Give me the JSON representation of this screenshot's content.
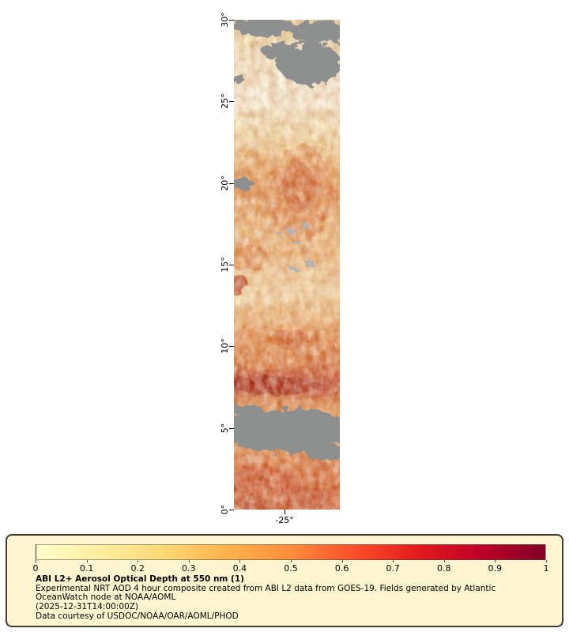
{
  "legend": {
    "lines": [
      "Experimental NRT AOD 4 hour composite created from ABI L2 data from GOES-19. Fields generated by Atlantic",
      "OceanWatch node at NOAA/AOML"
    ],
    "timestamp": "(2025-12-31T14:00:00Z)",
    "courtesy": "Data courtesy of USDOC/NOAA/OAR/AOML/PHOD"
  },
  "chart_data": {
    "type": "heatmap",
    "title": "ABI L2+ Aerosol Optical Depth at 550 nm (1)",
    "colorbar": {
      "range": [
        0,
        1
      ],
      "ticks": [
        "0",
        "0.1",
        "0.2",
        "0.3",
        "0.4",
        "0.5",
        "0.6",
        "0.7",
        "0.8",
        "0.9",
        "1"
      ],
      "tick_positions_pct": [
        0,
        10,
        20,
        30,
        40,
        50,
        60,
        70,
        80,
        90,
        100
      ],
      "colormap": "YlOrRd",
      "stops": [
        "#ffffcc",
        "#ffeda0",
        "#fed976",
        "#feb24c",
        "#fd8d3c",
        "#fc4e2a",
        "#e31a1c",
        "#bd0026",
        "#800026"
      ]
    },
    "y_axis": {
      "name": "latitude",
      "ticks": [
        "30°",
        "25°",
        "20°",
        "15°",
        "10°",
        "5°",
        "0°"
      ],
      "range_deg": [
        0,
        30
      ]
    },
    "x_axis": {
      "name": "longitude",
      "ticks": [
        "-25°"
      ]
    },
    "no_data_color": "#8e9090",
    "cloud_speck_color": "#a9b3bd",
    "latitude_profile": [
      {
        "pos": 0,
        "color": "#e3cf96"
      },
      {
        "pos": 2,
        "color": "#ecd9a2"
      },
      {
        "pos": 6,
        "color": "#f2e6bc"
      },
      {
        "pos": 10,
        "color": "#f6edcc"
      },
      {
        "pos": 16,
        "color": "#f8f1d8"
      },
      {
        "pos": 22,
        "color": "#f5e5b4"
      },
      {
        "pos": 27,
        "color": "#f0cd8e"
      },
      {
        "pos": 31,
        "color": "#e8ab62"
      },
      {
        "pos": 35,
        "color": "#e29552"
      },
      {
        "pos": 39,
        "color": "#e8a966"
      },
      {
        "pos": 44,
        "color": "#eebf80"
      },
      {
        "pos": 48,
        "color": "#ecb473"
      },
      {
        "pos": 52,
        "color": "#f2cf98"
      },
      {
        "pos": 56,
        "color": "#f4d9a6"
      },
      {
        "pos": 60,
        "color": "#efc07e"
      },
      {
        "pos": 65,
        "color": "#e59352"
      },
      {
        "pos": 70,
        "color": "#db7a40"
      },
      {
        "pos": 73,
        "color": "#c85330"
      },
      {
        "pos": 75,
        "color": "#c24a28"
      },
      {
        "pos": 77,
        "color": "#d97c42"
      },
      {
        "pos": 80,
        "color": "#e69e5c"
      },
      {
        "pos": 84,
        "color": "#e8a662"
      },
      {
        "pos": 88,
        "color": "#e19050"
      },
      {
        "pos": 91,
        "color": "#dc7c42"
      },
      {
        "pos": 94,
        "color": "#d4662f"
      },
      {
        "pos": 97,
        "color": "#d86e38"
      },
      {
        "pos": 100,
        "color": "#cf6233"
      }
    ],
    "approx_aod_by_latitude_band": [
      {
        "band": "30-28N",
        "aod": 0.3,
        "note": "broken cloud (gray, no data)"
      },
      {
        "band": "28-22N",
        "aod": 0.15,
        "note": "pale, low AOD; large gray cloud patch 25-28N right side"
      },
      {
        "band": "22-18N",
        "aod": 0.45,
        "note": "dust plume center-right, local max ~0.6"
      },
      {
        "band": "18-16N",
        "aod": 0.3
      },
      {
        "band": "16-14N",
        "aod": 0.4,
        "note": "orange on west edge, small cloud specks"
      },
      {
        "band": "14-11N",
        "aod": 0.3
      },
      {
        "band": "11-9N",
        "aod": 0.5
      },
      {
        "band": "9-7N",
        "aod": 0.75,
        "note": "dark red band, local max ~0.9"
      },
      {
        "band": "7-6N",
        "aod": 0.45
      },
      {
        "band": "6-4N",
        "aod": null,
        "note": "solid cloud band (gray, no data)"
      },
      {
        "band": "4-0N",
        "aod": 0.55,
        "note": "mottled red/orange, local max ~0.8"
      }
    ]
  }
}
